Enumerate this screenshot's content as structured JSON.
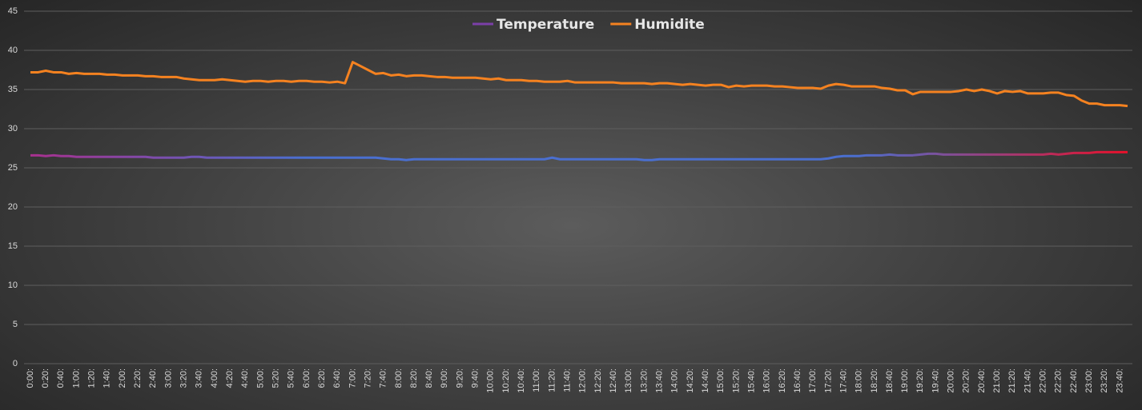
{
  "chart_data": {
    "type": "line",
    "categories": [
      "0:00:",
      null,
      "0:20:",
      null,
      "0:40:",
      null,
      "1:00:",
      null,
      "1:20:",
      null,
      "1:40:",
      null,
      "2:00:",
      null,
      "2:20:",
      null,
      "2:40:",
      null,
      "3:00:",
      null,
      "3:20:",
      null,
      "3:40:",
      null,
      "4:00:",
      null,
      "4:20:",
      null,
      "4:40:",
      null,
      "5:00:",
      null,
      "5:20:",
      null,
      "5:40:",
      null,
      "6:00:",
      null,
      "6:20:",
      null,
      "6:40:",
      null,
      "7:00:",
      null,
      "7:20:",
      null,
      "7:40:",
      null,
      "8:00:",
      null,
      "8:20:",
      null,
      "8:40:",
      null,
      "9:00:",
      null,
      "9:20:",
      null,
      "9:40:",
      null,
      "10:00:",
      null,
      "10:20:",
      null,
      "10:40:",
      null,
      "11:00:",
      null,
      "11:20:",
      null,
      "11:40:",
      null,
      "12:00:",
      null,
      "12:20:",
      null,
      "12:40:",
      null,
      "13:00:",
      null,
      "13:20:",
      null,
      "13:40:",
      null,
      "14:00:",
      null,
      "14:20:",
      null,
      "14:40:",
      null,
      "15:00:",
      null,
      "15:20:",
      null,
      "15:40:",
      null,
      "16:00:",
      null,
      "16:20:",
      null,
      "16:40:",
      null,
      "17:00:",
      null,
      "17:20:",
      null,
      "17:40:",
      null,
      "18:00:",
      null,
      "18:20:",
      null,
      "18:40:",
      null,
      "19:00:",
      null,
      "19:20:",
      null,
      "19:40:",
      null,
      "20:00:",
      null,
      "20:20:",
      null,
      "20:40:",
      null,
      "21:00:",
      null,
      "21:20:",
      null,
      "21:40:",
      null,
      "22:00:",
      null,
      "22:20:",
      null,
      "22:40:",
      null,
      "23:00:",
      null,
      "23:20:",
      null,
      "23:40:",
      null
    ],
    "series": [
      {
        "name": "Temperature",
        "color": "#7b3fa8",
        "gradient": [
          "#a8308e",
          "#4a6fd0",
          "#4a6fd0",
          "#4a6fd0",
          "#e8102a"
        ],
        "values": [
          26.6,
          26.6,
          26.5,
          26.6,
          26.5,
          26.5,
          26.4,
          26.4,
          26.4,
          26.4,
          26.4,
          26.4,
          26.4,
          26.4,
          26.4,
          26.4,
          26.3,
          26.3,
          26.3,
          26.3,
          26.3,
          26.4,
          26.4,
          26.3,
          26.3,
          26.3,
          26.3,
          26.3,
          26.3,
          26.3,
          26.3,
          26.3,
          26.3,
          26.3,
          26.3,
          26.3,
          26.3,
          26.3,
          26.3,
          26.3,
          26.3,
          26.3,
          26.3,
          26.3,
          26.3,
          26.3,
          26.2,
          26.1,
          26.1,
          26.0,
          26.1,
          26.1,
          26.1,
          26.1,
          26.1,
          26.1,
          26.1,
          26.1,
          26.1,
          26.1,
          26.1,
          26.1,
          26.1,
          26.1,
          26.1,
          26.1,
          26.1,
          26.1,
          26.3,
          26.1,
          26.1,
          26.1,
          26.1,
          26.1,
          26.1,
          26.1,
          26.1,
          26.1,
          26.1,
          26.1,
          26.0,
          26.0,
          26.1,
          26.1,
          26.1,
          26.1,
          26.1,
          26.1,
          26.1,
          26.1,
          26.1,
          26.1,
          26.1,
          26.1,
          26.1,
          26.1,
          26.1,
          26.1,
          26.1,
          26.1,
          26.1,
          26.1,
          26.1,
          26.1,
          26.2,
          26.4,
          26.5,
          26.5,
          26.5,
          26.6,
          26.6,
          26.6,
          26.7,
          26.6,
          26.6,
          26.6,
          26.7,
          26.8,
          26.8,
          26.7,
          26.7,
          26.7,
          26.7,
          26.7,
          26.7,
          26.7,
          26.7,
          26.7,
          26.7,
          26.7,
          26.7,
          26.7,
          26.7,
          26.8,
          26.7,
          26.8,
          26.9,
          26.9,
          26.9,
          27.0,
          27.0,
          27.0,
          27.0,
          27.0
        ]
      },
      {
        "name": "Humidite",
        "color": "#f58220",
        "values": [
          37.2,
          37.2,
          37.4,
          37.2,
          37.2,
          37.0,
          37.1,
          37.0,
          37.0,
          37.0,
          36.9,
          36.9,
          36.8,
          36.8,
          36.8,
          36.7,
          36.7,
          36.6,
          36.6,
          36.6,
          36.4,
          36.3,
          36.2,
          36.2,
          36.2,
          36.3,
          36.2,
          36.1,
          36.0,
          36.1,
          36.1,
          36.0,
          36.1,
          36.1,
          36.0,
          36.1,
          36.1,
          36.0,
          36.0,
          35.9,
          36.0,
          35.8,
          38.5,
          38.0,
          37.5,
          37.0,
          37.1,
          36.8,
          36.9,
          36.7,
          36.8,
          36.8,
          36.7,
          36.6,
          36.6,
          36.5,
          36.5,
          36.5,
          36.5,
          36.4,
          36.3,
          36.4,
          36.2,
          36.2,
          36.2,
          36.1,
          36.1,
          36.0,
          36.0,
          36.0,
          36.1,
          35.9,
          35.9,
          35.9,
          35.9,
          35.9,
          35.9,
          35.8,
          35.8,
          35.8,
          35.8,
          35.7,
          35.8,
          35.8,
          35.7,
          35.6,
          35.7,
          35.6,
          35.5,
          35.6,
          35.6,
          35.3,
          35.5,
          35.4,
          35.5,
          35.5,
          35.5,
          35.4,
          35.4,
          35.3,
          35.2,
          35.2,
          35.2,
          35.1,
          35.5,
          35.7,
          35.6,
          35.4,
          35.4,
          35.4,
          35.4,
          35.2,
          35.1,
          34.9,
          34.9,
          34.4,
          34.7,
          34.7,
          34.7,
          34.7,
          34.7,
          34.8,
          35.0,
          34.8,
          35.0,
          34.8,
          34.5,
          34.8,
          34.7,
          34.8,
          34.5,
          34.5,
          34.5,
          34.6,
          34.6,
          34.3,
          34.2,
          33.6,
          33.2,
          33.2,
          33.0,
          33.0,
          33.0,
          32.9
        ]
      }
    ],
    "ylim": [
      0,
      45
    ],
    "yticks": [
      0,
      5,
      10,
      15,
      20,
      25,
      30,
      35,
      40,
      45
    ],
    "grid": true,
    "legend": "top"
  }
}
